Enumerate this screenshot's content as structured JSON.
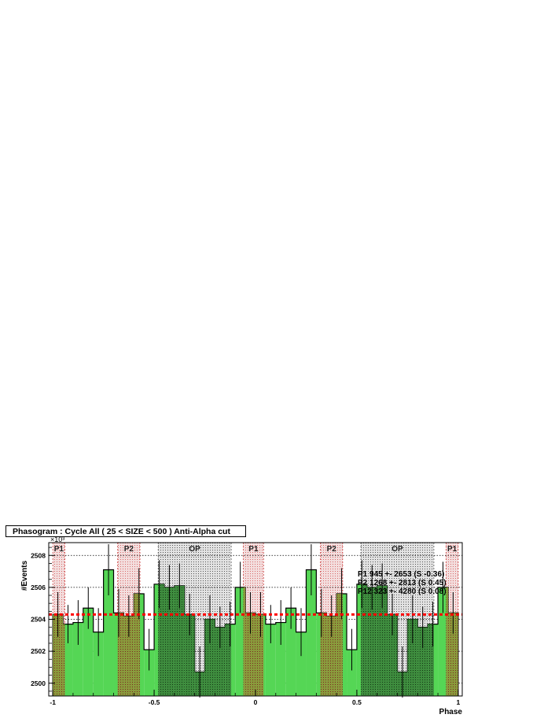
{
  "chart_data": {
    "type": "bar",
    "title": "Phasogram : Cycle All ( 25 < SIZE < 500 ) Anti-Alpha cut",
    "xlabel": "Phase",
    "ylabel": "#Events",
    "y_multiplier": "×10³",
    "xlim": [
      -1.02,
      1.02
    ],
    "ylim": [
      2499.2,
      2508.8
    ],
    "x_ticks": [
      -1,
      -0.5,
      0,
      0.5,
      1
    ],
    "x_tick_labels": [
      "-1",
      "-0.5",
      "0",
      "0.5",
      "1"
    ],
    "y_ticks": [
      2500,
      2502,
      2504,
      2506,
      2508
    ],
    "y_tick_labels": [
      "2500",
      "2502",
      "2504",
      "2506",
      "2508"
    ],
    "grid": true,
    "bin_width": 0.05,
    "bin_lows": [
      -1.0,
      -0.95,
      -0.9,
      -0.85,
      -0.8,
      -0.75,
      -0.7,
      -0.65,
      -0.6,
      -0.55,
      -0.5,
      -0.45,
      -0.4,
      -0.35,
      -0.3,
      -0.25,
      -0.2,
      -0.15,
      -0.1,
      -0.05,
      0.0,
      0.05,
      0.1,
      0.15,
      0.2,
      0.25,
      0.3,
      0.35,
      0.4,
      0.45,
      0.5,
      0.55,
      0.6,
      0.65,
      0.7,
      0.75,
      0.8,
      0.85,
      0.9,
      0.95
    ],
    "values": [
      2504.3,
      2503.7,
      2503.8,
      2504.7,
      2503.2,
      2507.1,
      2504.4,
      2504.2,
      2505.6,
      2502.1,
      2506.2,
      2506.0,
      2506.1,
      2504.3,
      2500.7,
      2504.0,
      2503.5,
      2503.7,
      2506.0,
      2504.4,
      2504.3,
      2503.7,
      2503.8,
      2504.7,
      2503.2,
      2507.1,
      2504.4,
      2504.2,
      2505.6,
      2502.1,
      2506.2,
      2506.0,
      2506.1,
      2504.3,
      2500.7,
      2504.0,
      2503.5,
      2503.7,
      2506.0,
      2504.4
    ],
    "errors": [
      1.4,
      1.2,
      1.4,
      1.3,
      1.5,
      1.6,
      1.5,
      1.3,
      1.6,
      1.3,
      1.5,
      1.4,
      1.4,
      1.3,
      1.6,
      1.5,
      1.3,
      1.4,
      1.6,
      1.3,
      1.4,
      1.2,
      1.4,
      1.3,
      1.5,
      1.6,
      1.5,
      1.3,
      1.6,
      1.3,
      1.5,
      1.4,
      1.4,
      1.3,
      1.6,
      1.5,
      1.3,
      1.4,
      1.6,
      1.3
    ],
    "background_level": 2504.3,
    "background_color": "#ff0000",
    "fill_color": "#55d655",
    "regions": [
      {
        "label": "P1",
        "lo": -1.0,
        "hi": -0.94,
        "color": "#e8a0a0"
      },
      {
        "label": "P2",
        "lo": -0.68,
        "hi": -0.57,
        "color": "#e8a0a0"
      },
      {
        "label": "OP",
        "lo": -0.48,
        "hi": -0.12,
        "color": "#c8c8c8"
      },
      {
        "label": "P1",
        "lo": -0.06,
        "hi": 0.04,
        "color": "#e8a0a0"
      },
      {
        "label": "P2",
        "lo": 0.32,
        "hi": 0.43,
        "color": "#e8a0a0"
      },
      {
        "label": "OP",
        "lo": 0.52,
        "hi": 0.88,
        "color": "#c8c8c8"
      },
      {
        "label": "P1",
        "lo": 0.94,
        "hi": 1.0,
        "color": "#e8a0a0"
      }
    ],
    "stats": [
      "P1  945 +- 2653 (S -0.36)",
      "P2  1268 +- 2813 (S 0.45)",
      "P12  323 +- 4280 (S 0.08)"
    ]
  }
}
